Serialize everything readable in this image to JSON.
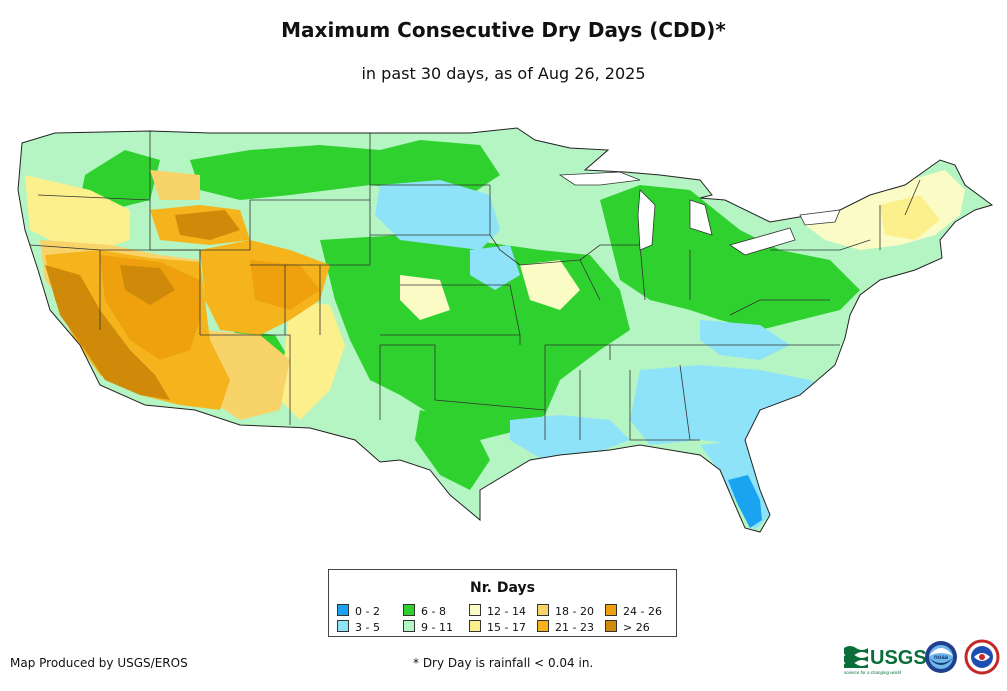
{
  "title": "Maximum Consecutive Dry Days (CDD)*",
  "subtitle": "in past 30 days, as of Aug 26, 2025",
  "legend": {
    "title": "Nr. Days",
    "items": [
      {
        "label": "0 - 2",
        "color": "#1aa3f0"
      },
      {
        "label": "3 - 5",
        "color": "#8ee3f8"
      },
      {
        "label": "6 - 8",
        "color": "#2fd12f"
      },
      {
        "label": "9 - 11",
        "color": "#b5f5c4"
      },
      {
        "label": "12 - 14",
        "color": "#fbfbc6"
      },
      {
        "label": "15 - 17",
        "color": "#fcf08c"
      },
      {
        "label": "18 - 20",
        "color": "#f7d36a"
      },
      {
        "label": "21 - 23",
        "color": "#f5b41c"
      },
      {
        "label": "24 - 26",
        "color": "#eea10c"
      },
      {
        "label": "> 26",
        "color": "#cf8a0a"
      }
    ]
  },
  "footer": {
    "credit": "Map Produced by USGS/EROS",
    "footnote": "* Dry Day is rainfall < 0.04 in."
  },
  "logos": {
    "usgs": "USGS",
    "usgs_tagline": "science for a changing world",
    "noaa": "noaa"
  }
}
